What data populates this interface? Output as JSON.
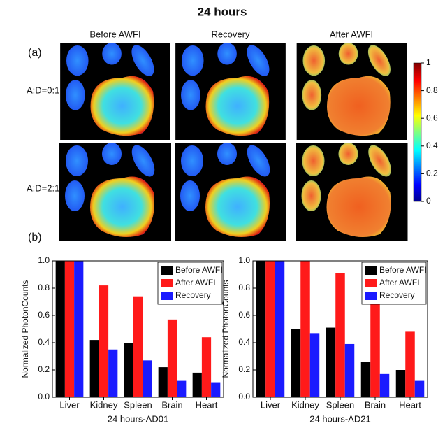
{
  "title": "24 hours",
  "panel_labels": [
    "(a)",
    "(b)"
  ],
  "heatmap": {
    "columns": [
      "Before AWFI",
      "Recovery",
      "After AWFI"
    ],
    "rows": [
      "A:D=0:1",
      "A:D=2:1"
    ],
    "colorbar": {
      "lim": [
        0,
        1
      ],
      "ticks": [
        0,
        0.2,
        0.4,
        0.6,
        0.8,
        1
      ]
    }
  },
  "chart_data": [
    {
      "type": "bar",
      "x_label": "24 hours-AD01",
      "y_label": "Normalized PhotonCounts",
      "categories": [
        "Liver",
        "Kidney",
        "Spleen",
        "Brain",
        "Heart"
      ],
      "series": [
        {
          "name": "Before AWFI",
          "color": "#000000",
          "values": [
            1.0,
            0.42,
            0.4,
            0.22,
            0.18
          ]
        },
        {
          "name": "After AWFI",
          "color": "#ff1a1a",
          "values": [
            1.0,
            0.82,
            0.74,
            0.57,
            0.44
          ]
        },
        {
          "name": "Recovery",
          "color": "#1a1aff",
          "values": [
            1.0,
            0.35,
            0.27,
            0.12,
            0.11
          ]
        }
      ],
      "ylim": [
        0,
        1
      ],
      "yticks": [
        {
          "value": 0,
          "label": "0.0"
        },
        0.2,
        0.4,
        0.6,
        0.8,
        {
          "value": 1,
          "label": "1.0"
        }
      ],
      "legend": "upper right"
    },
    {
      "type": "bar",
      "x_label": "24 hours-AD21",
      "y_label": "Normalized PhotonCounts",
      "categories": [
        "Liver",
        "Kidney",
        "Spleen",
        "Brain",
        "Heart"
      ],
      "series": [
        {
          "name": "Before AWFI",
          "color": "#000000",
          "values": [
            1.0,
            0.5,
            0.51,
            0.26,
            0.2
          ]
        },
        {
          "name": "After AWFI",
          "color": "#ff1a1a",
          "values": [
            1.0,
            1.0,
            0.91,
            0.71,
            0.48
          ]
        },
        {
          "name": "Recovery",
          "color": "#1a1aff",
          "values": [
            1.0,
            0.47,
            0.39,
            0.17,
            0.12
          ]
        }
      ],
      "ylim": [
        0,
        1
      ],
      "yticks": [
        {
          "value": 0,
          "label": "0.0"
        },
        0.2,
        0.4,
        0.6,
        0.8,
        {
          "value": 1,
          "label": "1.0"
        }
      ],
      "legend": "upper right"
    }
  ]
}
